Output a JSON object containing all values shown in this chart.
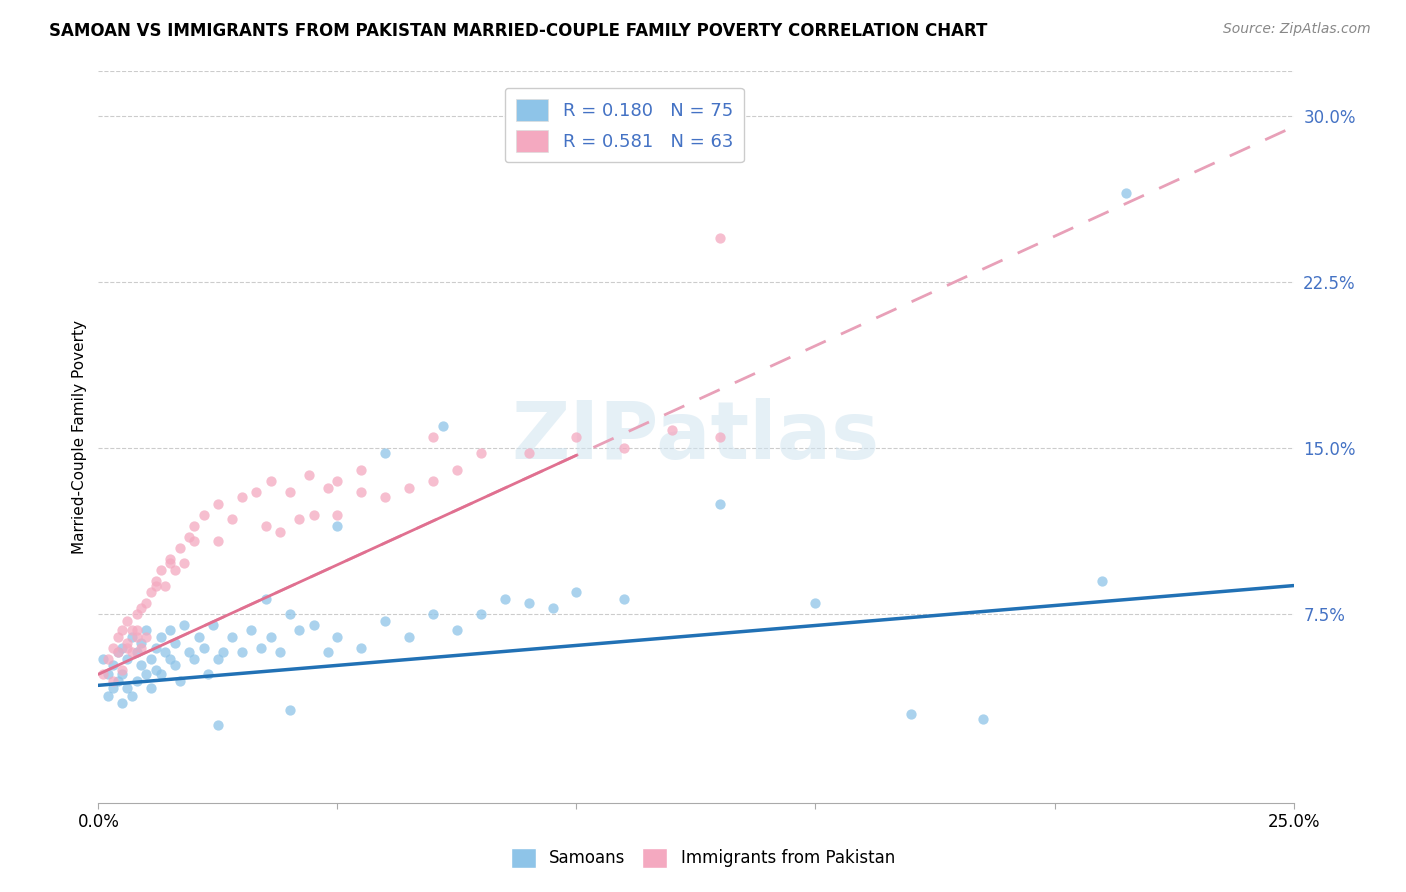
{
  "title": "SAMOAN VS IMMIGRANTS FROM PAKISTAN MARRIED-COUPLE FAMILY POVERTY CORRELATION CHART",
  "source": "Source: ZipAtlas.com",
  "ylabel": "Married-Couple Family Poverty",
  "yticks": [
    "7.5%",
    "15.0%",
    "22.5%",
    "30.0%"
  ],
  "ytick_vals": [
    0.075,
    0.15,
    0.225,
    0.3
  ],
  "xrange": [
    0.0,
    0.25
  ],
  "yrange": [
    -0.01,
    0.32
  ],
  "watermark": "ZIPatlas",
  "samoans_color": "#8ec4e8",
  "pakistan_color": "#f4a9c0",
  "trend_samoan_color": "#2171b5",
  "trend_pakistan_color": "#e07090",
  "trend_pakistan_dash_color": "#e8a0b8",
  "legend_label1": "R = 0.180   N = 75",
  "legend_label2": "R = 0.581   N = 63",
  "samoans_x": [
    0.001,
    0.002,
    0.002,
    0.003,
    0.003,
    0.004,
    0.004,
    0.005,
    0.005,
    0.005,
    0.006,
    0.006,
    0.007,
    0.007,
    0.008,
    0.008,
    0.009,
    0.009,
    0.01,
    0.01,
    0.011,
    0.011,
    0.012,
    0.012,
    0.013,
    0.013,
    0.014,
    0.015,
    0.015,
    0.016,
    0.016,
    0.017,
    0.018,
    0.019,
    0.02,
    0.021,
    0.022,
    0.023,
    0.024,
    0.025,
    0.026,
    0.028,
    0.03,
    0.032,
    0.034,
    0.036,
    0.038,
    0.04,
    0.042,
    0.045,
    0.048,
    0.05,
    0.055,
    0.06,
    0.065,
    0.07,
    0.075,
    0.08,
    0.09,
    0.1,
    0.072,
    0.085,
    0.095,
    0.11,
    0.13,
    0.15,
    0.17,
    0.185,
    0.21,
    0.215,
    0.06,
    0.035,
    0.05,
    0.025,
    0.04
  ],
  "samoans_y": [
    0.055,
    0.048,
    0.038,
    0.042,
    0.052,
    0.045,
    0.058,
    0.06,
    0.035,
    0.048,
    0.055,
    0.042,
    0.065,
    0.038,
    0.058,
    0.045,
    0.052,
    0.062,
    0.048,
    0.068,
    0.055,
    0.042,
    0.06,
    0.05,
    0.065,
    0.048,
    0.058,
    0.055,
    0.068,
    0.052,
    0.062,
    0.045,
    0.07,
    0.058,
    0.055,
    0.065,
    0.06,
    0.048,
    0.07,
    0.055,
    0.058,
    0.065,
    0.058,
    0.068,
    0.06,
    0.065,
    0.058,
    0.075,
    0.068,
    0.07,
    0.058,
    0.065,
    0.06,
    0.072,
    0.065,
    0.075,
    0.068,
    0.075,
    0.08,
    0.085,
    0.16,
    0.082,
    0.078,
    0.082,
    0.125,
    0.08,
    0.03,
    0.028,
    0.09,
    0.265,
    0.148,
    0.082,
    0.115,
    0.025,
    0.032
  ],
  "pakistan_x": [
    0.001,
    0.002,
    0.003,
    0.003,
    0.004,
    0.004,
    0.005,
    0.005,
    0.006,
    0.006,
    0.007,
    0.007,
    0.008,
    0.008,
    0.009,
    0.009,
    0.01,
    0.01,
    0.011,
    0.012,
    0.013,
    0.014,
    0.015,
    0.016,
    0.017,
    0.018,
    0.019,
    0.02,
    0.022,
    0.025,
    0.028,
    0.03,
    0.033,
    0.036,
    0.04,
    0.044,
    0.048,
    0.05,
    0.055,
    0.06,
    0.065,
    0.07,
    0.075,
    0.08,
    0.09,
    0.1,
    0.11,
    0.12,
    0.13,
    0.045,
    0.035,
    0.042,
    0.038,
    0.05,
    0.025,
    0.02,
    0.015,
    0.012,
    0.008,
    0.006,
    0.13,
    0.055,
    0.07
  ],
  "pakistan_y": [
    0.048,
    0.055,
    0.045,
    0.06,
    0.058,
    0.065,
    0.05,
    0.068,
    0.062,
    0.072,
    0.058,
    0.068,
    0.065,
    0.075,
    0.06,
    0.078,
    0.065,
    0.08,
    0.085,
    0.09,
    0.095,
    0.088,
    0.1,
    0.095,
    0.105,
    0.098,
    0.11,
    0.115,
    0.12,
    0.125,
    0.118,
    0.128,
    0.13,
    0.135,
    0.13,
    0.138,
    0.132,
    0.135,
    0.13,
    0.128,
    0.132,
    0.135,
    0.14,
    0.148,
    0.148,
    0.155,
    0.15,
    0.158,
    0.155,
    0.12,
    0.115,
    0.118,
    0.112,
    0.12,
    0.108,
    0.108,
    0.098,
    0.088,
    0.068,
    0.06,
    0.245,
    0.14,
    0.155
  ],
  "trend_sam_x0": 0.0,
  "trend_sam_y0": 0.043,
  "trend_sam_x1": 0.25,
  "trend_sam_y1": 0.088,
  "trend_pak_x0": 0.0,
  "trend_pak_y0": 0.048,
  "trend_pak_x1": 0.25,
  "trend_pak_y1": 0.295
}
